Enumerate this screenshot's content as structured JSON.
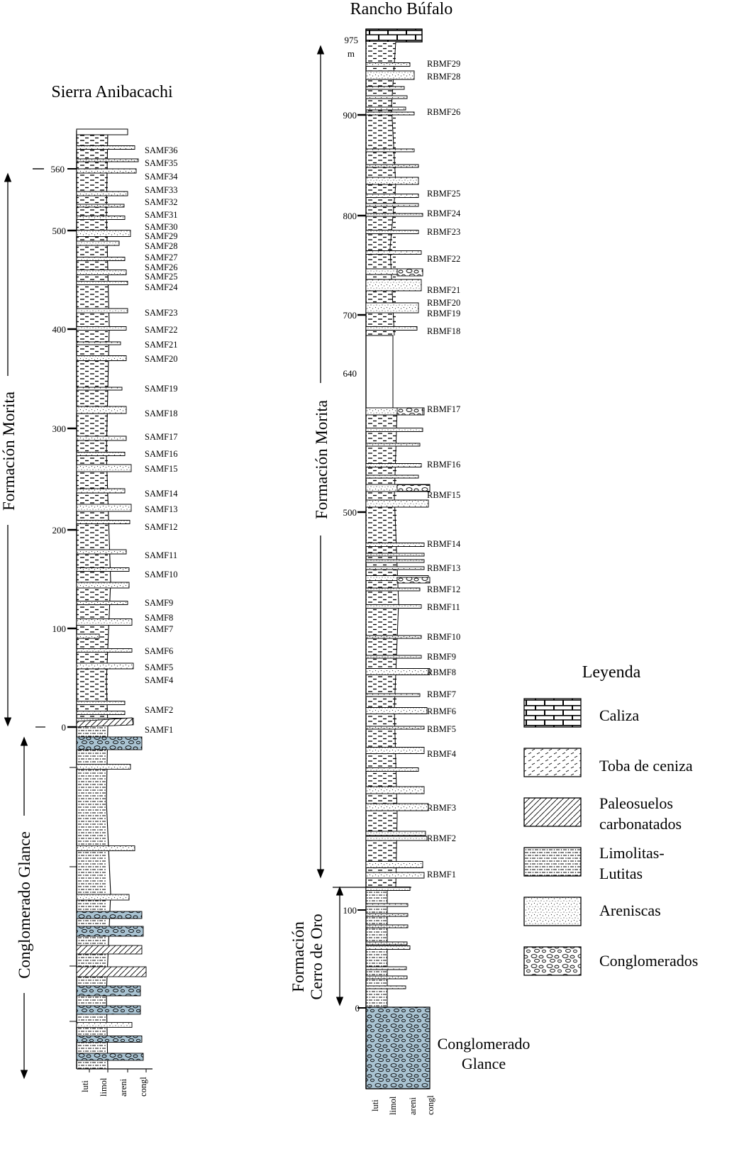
{
  "sierra": {
    "title": "Sierra Anibacachi",
    "ticks": [
      {
        "value": 560,
        "label": "560"
      },
      {
        "value": 500,
        "label": "500"
      },
      {
        "value": 400,
        "label": "400"
      },
      {
        "value": 300,
        "label": "300"
      },
      {
        "value": 200,
        "label": "200"
      },
      {
        "value": 100,
        "label": "100"
      },
      {
        "value": 0,
        "label": "0"
      }
    ],
    "samples": [
      "SAMF36",
      "SAMF35",
      "SAMF34",
      "SAMF33",
      "SAMF32",
      "SAMF31",
      "SAMF30",
      "SAMF29",
      "SAMF28",
      "SAMF27",
      "SAMF26",
      "SAMF25",
      "SAMF24",
      "SAMF23",
      "SAMF22",
      "SAMF21",
      "SAMF20",
      "SAMF19",
      "SAMF18",
      "SAMF17",
      "SAMF16",
      "SAMF15",
      "SAMF14",
      "SAMF13",
      "SAMF12",
      "SAMF11",
      "SAMF10",
      "SAMF9",
      "SAMF8",
      "SAMF7",
      "SAMF6",
      "SAMF5",
      "SAMF4",
      "SAMF2",
      "SAMF1"
    ],
    "units": [
      "Formación Morita",
      "Conglomerado Glance"
    ],
    "grain_labels": [
      "luti",
      "limol",
      "areni",
      "congl"
    ]
  },
  "rancho": {
    "title": "Rancho Búfalo",
    "top_label": "975",
    "unit_label": "m",
    "ticks": [
      {
        "value": 900,
        "label": "900"
      },
      {
        "value": 800,
        "label": "800"
      },
      {
        "value": 700,
        "label": "700"
      },
      {
        "value": 640,
        "label": "640"
      },
      {
        "value": 500,
        "label": "500"
      },
      {
        "value": 100,
        "label": "100"
      },
      {
        "value": 0,
        "label": "0"
      }
    ],
    "samples": [
      "RBMF29",
      "RBMF28",
      "RBMF26",
      "RBMF25",
      "RBMF24",
      "RBMF23",
      "RBMF22",
      "RBMF21",
      "RBMF20",
      "RBMF19",
      "RBMF18",
      "RBMF17",
      "RBMF16",
      "RBMF15",
      "RBMF14",
      "RBMF13",
      "RBMF12",
      "RBMF11",
      "RBMF10",
      "RBMF9",
      "RBMF8",
      "RBMF7",
      "RBMF6",
      "RBMF5",
      "RBMF4",
      "RBMF3",
      "RBMF2",
      "RBMF1"
    ],
    "units": [
      "Formación Morita",
      "Formación",
      "Cerro de Oro",
      "Conglomerado",
      "Glance"
    ],
    "grain_labels": [
      "luti",
      "limol",
      "areni",
      "congl"
    ]
  },
  "legend": {
    "title": "Leyenda",
    "items": [
      {
        "label": "Caliza"
      },
      {
        "label": "Toba de ceniza"
      },
      {
        "label": "Paleosuelos",
        "label2": "carbonatados"
      },
      {
        "label": "Limolitas-",
        "label2": "Lutitas"
      },
      {
        "label": "Areniscas"
      },
      {
        "label": "Conglomerados"
      }
    ]
  },
  "colors": {
    "conglomerate": "#a9c3d2",
    "ink": "#000000"
  }
}
